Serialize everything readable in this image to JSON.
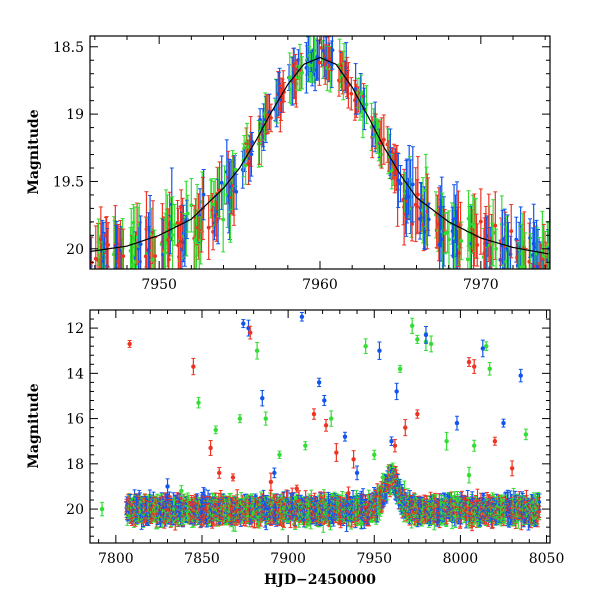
{
  "chart_data": [
    {
      "type": "scatter",
      "panel": "top",
      "xlabel": "",
      "ylabel": "Magnitude",
      "xlim": [
        7945.7,
        7974.3
      ],
      "ylim": [
        20.15,
        18.42
      ],
      "y_inverted": true,
      "xticks": [
        7950,
        7960,
        7970
      ],
      "yticks": [
        18.5,
        19,
        19.5,
        20
      ],
      "ytick_labels": [
        "18.5",
        "19",
        "19.5",
        "20"
      ],
      "colors": {
        "green": "#33dd33",
        "blue": "#1155ee",
        "red": "#ee3322",
        "model": "#000000"
      },
      "model_curve": {
        "x": [
          7945.7,
          7948,
          7950,
          7952,
          7954,
          7955,
          7956,
          7957,
          7958,
          7959,
          7960,
          7961,
          7962,
          7963,
          7964,
          7965,
          7966,
          7968,
          7970,
          7972,
          7974.3
        ],
        "y": [
          20.02,
          19.98,
          19.9,
          19.78,
          19.55,
          19.4,
          19.2,
          18.98,
          18.78,
          18.63,
          18.58,
          18.63,
          18.8,
          19.02,
          19.25,
          19.45,
          19.62,
          19.8,
          19.92,
          19.99,
          20.04
        ]
      },
      "grid": false,
      "legend": "none"
    },
    {
      "type": "scatter",
      "panel": "bottom",
      "xlabel": "HJD−2450000",
      "ylabel": "Magnitude",
      "xlim": [
        7785,
        8052
      ],
      "ylim": [
        21.5,
        11.2
      ],
      "y_inverted": true,
      "xticks": [
        7800,
        7850,
        7900,
        7950,
        8000,
        8050
      ],
      "yticks": [
        12,
        14,
        16,
        18,
        20
      ],
      "colors": {
        "green": "#33dd33",
        "blue": "#1155ee",
        "red": "#ee3322"
      },
      "outliers": {
        "red": [
          [
            7808,
            12.7
          ],
          [
            7845,
            13.7
          ],
          [
            7855,
            17.3
          ],
          [
            7860,
            18.4
          ],
          [
            7868,
            18.6
          ],
          [
            7878,
            12.2
          ],
          [
            7915,
            15.8
          ],
          [
            7922,
            16.3
          ],
          [
            7928,
            17.5
          ],
          [
            7938,
            17.8
          ],
          [
            7962,
            17.2
          ],
          [
            7968,
            16.4
          ],
          [
            7975,
            15.8
          ],
          [
            8005,
            13.5
          ],
          [
            8008,
            13.7
          ],
          [
            8020,
            17.0
          ],
          [
            8030,
            18.2
          ],
          [
            7890,
            18.8
          ],
          [
            7905,
            19.1
          ],
          [
            7935,
            19.3
          ]
        ],
        "blue": [
          [
            7874,
            11.8
          ],
          [
            7877,
            12.0
          ],
          [
            7885,
            15.1
          ],
          [
            7908,
            11.5
          ],
          [
            7918,
            14.4
          ],
          [
            7921,
            15.2
          ],
          [
            7933,
            16.8
          ],
          [
            7940,
            18.4
          ],
          [
            7953,
            13.0
          ],
          [
            7960,
            17.0
          ],
          [
            7963,
            14.8
          ],
          [
            7980,
            12.3
          ],
          [
            7998,
            16.2
          ],
          [
            8013,
            12.9
          ],
          [
            8025,
            16.2
          ],
          [
            8035,
            14.1
          ],
          [
            7892,
            18.4
          ],
          [
            7830,
            19.0
          ]
        ],
        "green": [
          [
            7792,
            20.0
          ],
          [
            7848,
            15.3
          ],
          [
            7858,
            16.5
          ],
          [
            7872,
            16.0
          ],
          [
            7882,
            13.0
          ],
          [
            7887,
            16.0
          ],
          [
            7895,
            17.6
          ],
          [
            7910,
            17.2
          ],
          [
            7925,
            16.0
          ],
          [
            7945,
            12.8
          ],
          [
            7950,
            17.6
          ],
          [
            7965,
            13.8
          ],
          [
            7972,
            11.9
          ],
          [
            7975,
            12.5
          ],
          [
            7980,
            12.6
          ],
          [
            7983,
            12.7
          ],
          [
            7992,
            17.0
          ],
          [
            8005,
            18.5
          ],
          [
            8008,
            17.2
          ],
          [
            8015,
            12.8
          ],
          [
            8017,
            13.8
          ],
          [
            8038,
            16.7
          ],
          [
            7838,
            19.2
          ],
          [
            7955,
            18.6
          ]
        ]
      },
      "grid": false,
      "legend": "none"
    }
  ]
}
